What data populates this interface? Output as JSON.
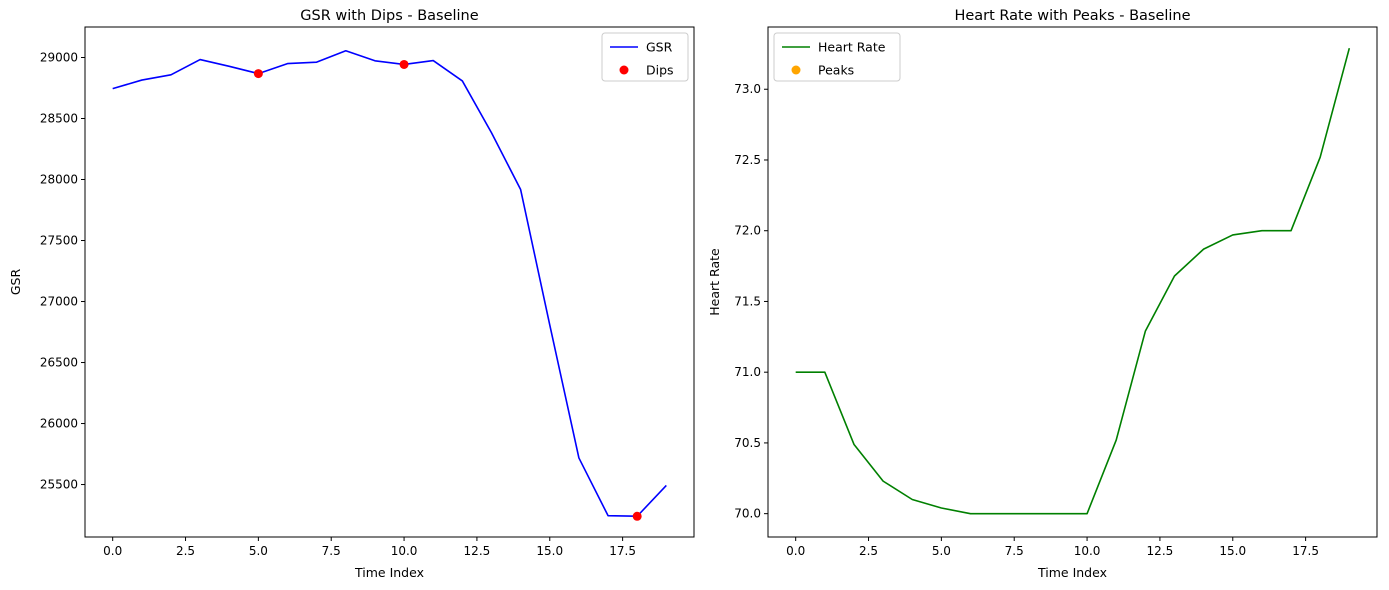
{
  "chart_data": [
    {
      "type": "line",
      "title": "GSR with Dips - Baseline",
      "xlabel": "Time Index",
      "ylabel": "GSR",
      "xlim": [
        -0.95,
        19.95
      ],
      "ylim": [
        25070,
        29250
      ],
      "xticks": [
        0,
        2.5,
        5,
        7.5,
        10,
        12.5,
        15,
        17.5
      ],
      "xtick_labels": [
        "0.0",
        "2.5",
        "5.0",
        "7.5",
        "10.0",
        "12.5",
        "15.0",
        "17.5"
      ],
      "yticks": [
        25500,
        26000,
        26500,
        27000,
        27500,
        28000,
        28500,
        29000
      ],
      "ytick_labels": [
        "25500",
        "26000",
        "26500",
        "27000",
        "27500",
        "28000",
        "28500",
        "29000"
      ],
      "legend_position": "top-right",
      "series": [
        {
          "name": "GSR",
          "kind": "line",
          "color": "#0000ff",
          "x": [
            0,
            1,
            2,
            3,
            4,
            5,
            6,
            7,
            8,
            9,
            10,
            11,
            12,
            13,
            14,
            15,
            16,
            17,
            18,
            19
          ],
          "y": [
            28745,
            28815,
            28858,
            28983,
            28928,
            28868,
            28950,
            28962,
            29055,
            28973,
            28943,
            28975,
            28808,
            28383,
            27918,
            26808,
            25718,
            25245,
            25240,
            25493
          ]
        },
        {
          "name": "Dips",
          "kind": "scatter",
          "color": "#ff0000",
          "x": [
            5,
            10,
            18
          ],
          "y": [
            28868,
            28943,
            25240
          ]
        }
      ]
    },
    {
      "type": "line",
      "title": "Heart Rate with Peaks - Baseline",
      "xlabel": "Time Index",
      "ylabel": "Heart Rate",
      "xlim": [
        -0.95,
        19.95
      ],
      "ylim": [
        69.835,
        73.44
      ],
      "xticks": [
        0,
        2.5,
        5,
        7.5,
        10,
        12.5,
        15,
        17.5
      ],
      "xtick_labels": [
        "0.0",
        "2.5",
        "5.0",
        "7.5",
        "10.0",
        "12.5",
        "15.0",
        "17.5"
      ],
      "yticks": [
        70.0,
        70.5,
        71.0,
        71.5,
        72.0,
        72.5,
        73.0
      ],
      "ytick_labels": [
        "70.0",
        "70.5",
        "71.0",
        "71.5",
        "72.0",
        "72.5",
        "73.0"
      ],
      "legend_position": "top-left",
      "series": [
        {
          "name": "Heart Rate",
          "kind": "line",
          "color": "#008000",
          "x": [
            0,
            1,
            2,
            3,
            4,
            5,
            6,
            7,
            8,
            9,
            10,
            11,
            12,
            13,
            14,
            15,
            16,
            17,
            18,
            19
          ],
          "y": [
            71.0,
            71.0,
            70.49,
            70.23,
            70.1,
            70.04,
            70.0,
            70.0,
            70.0,
            70.0,
            70.0,
            70.52,
            71.29,
            71.68,
            71.87,
            71.97,
            72.0,
            72.0,
            72.52,
            73.29
          ]
        },
        {
          "name": "Peaks",
          "kind": "scatter",
          "color": "#ffa500",
          "x": [],
          "y": []
        }
      ]
    }
  ]
}
